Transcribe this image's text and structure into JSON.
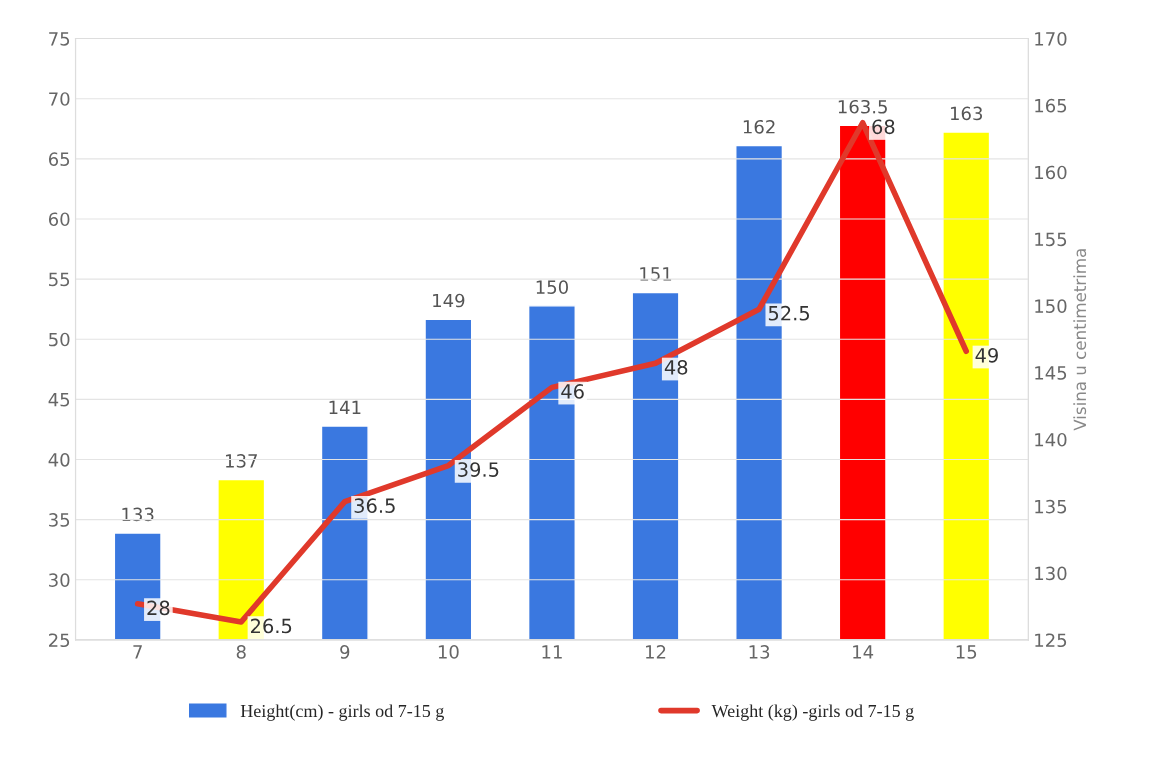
{
  "chart_data": {
    "type": "bar",
    "categories": [
      "7",
      "8",
      "9",
      "10",
      "11",
      "12",
      "13",
      "14",
      "15"
    ],
    "series": [
      {
        "name": "Height(cm) - girls od 7-15 g",
        "axis": "y2",
        "color": "#3a78e0",
        "colors": [
          "#3a78e0",
          "#ffff00",
          "#3a78e0",
          "#3a78e0",
          "#3a78e0",
          "#3a78e0",
          "#3a78e0",
          "#ff0000",
          "#ffff00"
        ],
        "values": [
          133,
          137,
          141,
          149,
          150,
          151,
          162,
          163.5,
          163
        ]
      },
      {
        "name": "Weight (kg) -girls od 7-15 g",
        "type": "line",
        "color": "#e0392b",
        "values": [
          28,
          26.5,
          36.5,
          39.5,
          46,
          48,
          52.5,
          68,
          49
        ]
      }
    ],
    "ylim": [
      25,
      75
    ],
    "yticks": [
      25,
      30,
      35,
      40,
      45,
      50,
      55,
      60,
      65,
      70,
      75
    ],
    "y2lim": [
      125,
      170
    ],
    "y2ticks": [
      125,
      130,
      135,
      140,
      145,
      150,
      155,
      160,
      165,
      170
    ],
    "y2label": "Visina u centimetrima",
    "data_labels": true,
    "grid": "y",
    "legend": "bottom"
  }
}
